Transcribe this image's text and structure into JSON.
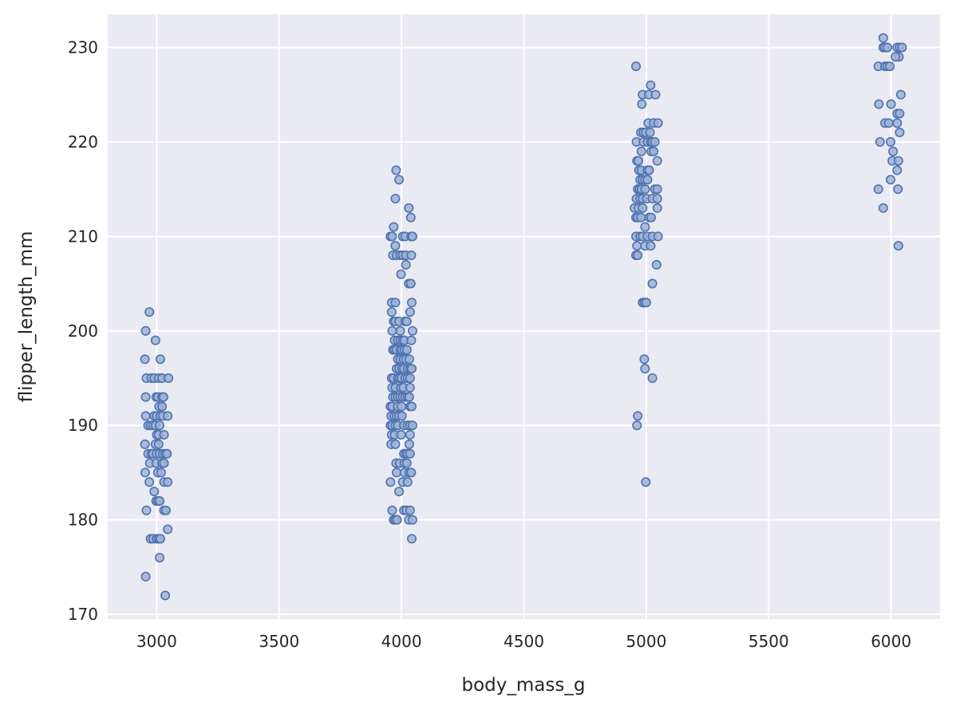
{
  "chart_data": {
    "type": "scatter",
    "title": "",
    "xlabel": "body_mass_g",
    "ylabel": "flipper_length_mm",
    "xlim": [
      2800,
      6200
    ],
    "ylim": [
      169.5,
      233.5
    ],
    "xticks": [
      3000,
      3500,
      4000,
      4500,
      5000,
      5500,
      6000
    ],
    "yticks": [
      170,
      180,
      190,
      200,
      210,
      220,
      230
    ],
    "grid": true,
    "background": "#eaeaf2",
    "marker_color": "#4c72b0",
    "marker_fill": "#9fb3d6",
    "points": [
      {
        "x": 2970,
        "y": 202
      },
      {
        "x": 2955,
        "y": 200
      },
      {
        "x": 2995,
        "y": 199
      },
      {
        "x": 2952,
        "y": 197
      },
      {
        "x": 3015,
        "y": 197
      },
      {
        "x": 2958,
        "y": 195
      },
      {
        "x": 2978,
        "y": 195
      },
      {
        "x": 2990,
        "y": 195
      },
      {
        "x": 3008,
        "y": 195
      },
      {
        "x": 3022,
        "y": 195
      },
      {
        "x": 3048,
        "y": 195
      },
      {
        "x": 2955,
        "y": 193
      },
      {
        "x": 2998,
        "y": 193
      },
      {
        "x": 3005,
        "y": 193
      },
      {
        "x": 3022,
        "y": 193
      },
      {
        "x": 3028,
        "y": 193
      },
      {
        "x": 3010,
        "y": 192
      },
      {
        "x": 3022,
        "y": 192
      },
      {
        "x": 2955,
        "y": 191
      },
      {
        "x": 2990,
        "y": 191
      },
      {
        "x": 3000,
        "y": 191
      },
      {
        "x": 3015,
        "y": 191
      },
      {
        "x": 3025,
        "y": 191
      },
      {
        "x": 3045,
        "y": 191
      },
      {
        "x": 2965,
        "y": 190
      },
      {
        "x": 2975,
        "y": 190
      },
      {
        "x": 2985,
        "y": 190
      },
      {
        "x": 2995,
        "y": 190
      },
      {
        "x": 3012,
        "y": 190
      },
      {
        "x": 3000,
        "y": 189
      },
      {
        "x": 3008,
        "y": 189
      },
      {
        "x": 3030,
        "y": 189
      },
      {
        "x": 2952,
        "y": 188
      },
      {
        "x": 2995,
        "y": 188
      },
      {
        "x": 3008,
        "y": 188
      },
      {
        "x": 2965,
        "y": 187
      },
      {
        "x": 2978,
        "y": 187
      },
      {
        "x": 2985,
        "y": 187
      },
      {
        "x": 3000,
        "y": 187
      },
      {
        "x": 3012,
        "y": 187
      },
      {
        "x": 3025,
        "y": 187
      },
      {
        "x": 3035,
        "y": 187
      },
      {
        "x": 3042,
        "y": 187
      },
      {
        "x": 2972,
        "y": 186
      },
      {
        "x": 2998,
        "y": 186
      },
      {
        "x": 3022,
        "y": 186
      },
      {
        "x": 3030,
        "y": 186
      },
      {
        "x": 2953,
        "y": 185
      },
      {
        "x": 3005,
        "y": 185
      },
      {
        "x": 3018,
        "y": 185
      },
      {
        "x": 2970,
        "y": 184
      },
      {
        "x": 3030,
        "y": 184
      },
      {
        "x": 3045,
        "y": 184
      },
      {
        "x": 2990,
        "y": 183
      },
      {
        "x": 2998,
        "y": 182
      },
      {
        "x": 3005,
        "y": 182
      },
      {
        "x": 3012,
        "y": 182
      },
      {
        "x": 2958,
        "y": 181
      },
      {
        "x": 3030,
        "y": 181
      },
      {
        "x": 3038,
        "y": 181
      },
      {
        "x": 3045,
        "y": 179
      },
      {
        "x": 2975,
        "y": 178
      },
      {
        "x": 2985,
        "y": 178
      },
      {
        "x": 3000,
        "y": 178
      },
      {
        "x": 3008,
        "y": 178
      },
      {
        "x": 3015,
        "y": 178
      },
      {
        "x": 3012,
        "y": 176
      },
      {
        "x": 2955,
        "y": 174
      },
      {
        "x": 3035,
        "y": 172
      },
      {
        "x": 3978,
        "y": 217
      },
      {
        "x": 3990,
        "y": 216
      },
      {
        "x": 3975,
        "y": 214
      },
      {
        "x": 4030,
        "y": 213
      },
      {
        "x": 4038,
        "y": 212
      },
      {
        "x": 3968,
        "y": 211
      },
      {
        "x": 3955,
        "y": 210
      },
      {
        "x": 3962,
        "y": 210
      },
      {
        "x": 4005,
        "y": 210
      },
      {
        "x": 4015,
        "y": 210
      },
      {
        "x": 4040,
        "y": 210
      },
      {
        "x": 4045,
        "y": 210
      },
      {
        "x": 3975,
        "y": 209
      },
      {
        "x": 3965,
        "y": 208
      },
      {
        "x": 3980,
        "y": 208
      },
      {
        "x": 3995,
        "y": 208
      },
      {
        "x": 4005,
        "y": 208
      },
      {
        "x": 4018,
        "y": 208
      },
      {
        "x": 4040,
        "y": 208
      },
      {
        "x": 4018,
        "y": 207
      },
      {
        "x": 3998,
        "y": 206
      },
      {
        "x": 4030,
        "y": 205
      },
      {
        "x": 4038,
        "y": 205
      },
      {
        "x": 3960,
        "y": 203
      },
      {
        "x": 3975,
        "y": 203
      },
      {
        "x": 4042,
        "y": 203
      },
      {
        "x": 3960,
        "y": 202
      },
      {
        "x": 4035,
        "y": 202
      },
      {
        "x": 3968,
        "y": 201
      },
      {
        "x": 3975,
        "y": 201
      },
      {
        "x": 3990,
        "y": 201
      },
      {
        "x": 4015,
        "y": 201
      },
      {
        "x": 4022,
        "y": 201
      },
      {
        "x": 3962,
        "y": 200
      },
      {
        "x": 3995,
        "y": 200
      },
      {
        "x": 4045,
        "y": 200
      },
      {
        "x": 3972,
        "y": 199
      },
      {
        "x": 3985,
        "y": 199
      },
      {
        "x": 3995,
        "y": 199
      },
      {
        "x": 4005,
        "y": 199
      },
      {
        "x": 4012,
        "y": 199
      },
      {
        "x": 4040,
        "y": 199
      },
      {
        "x": 3965,
        "y": 198
      },
      {
        "x": 3972,
        "y": 198
      },
      {
        "x": 3980,
        "y": 198
      },
      {
        "x": 3995,
        "y": 198
      },
      {
        "x": 4002,
        "y": 198
      },
      {
        "x": 4012,
        "y": 198
      },
      {
        "x": 4022,
        "y": 198
      },
      {
        "x": 3985,
        "y": 197
      },
      {
        "x": 3995,
        "y": 197
      },
      {
        "x": 4008,
        "y": 197
      },
      {
        "x": 4018,
        "y": 197
      },
      {
        "x": 4032,
        "y": 197
      },
      {
        "x": 3980,
        "y": 196
      },
      {
        "x": 3990,
        "y": 196
      },
      {
        "x": 4002,
        "y": 196
      },
      {
        "x": 4010,
        "y": 196
      },
      {
        "x": 4025,
        "y": 196
      },
      {
        "x": 4035,
        "y": 196
      },
      {
        "x": 4042,
        "y": 196
      },
      {
        "x": 3960,
        "y": 195
      },
      {
        "x": 3968,
        "y": 195
      },
      {
        "x": 3985,
        "y": 195
      },
      {
        "x": 3992,
        "y": 195
      },
      {
        "x": 4000,
        "y": 195
      },
      {
        "x": 4015,
        "y": 195
      },
      {
        "x": 4025,
        "y": 195
      },
      {
        "x": 4035,
        "y": 195
      },
      {
        "x": 3962,
        "y": 194
      },
      {
        "x": 3975,
        "y": 194
      },
      {
        "x": 3998,
        "y": 194
      },
      {
        "x": 4008,
        "y": 194
      },
      {
        "x": 4035,
        "y": 194
      },
      {
        "x": 3965,
        "y": 193
      },
      {
        "x": 3975,
        "y": 193
      },
      {
        "x": 3985,
        "y": 193
      },
      {
        "x": 3995,
        "y": 193
      },
      {
        "x": 4005,
        "y": 193
      },
      {
        "x": 4015,
        "y": 193
      },
      {
        "x": 4025,
        "y": 193
      },
      {
        "x": 4032,
        "y": 193
      },
      {
        "x": 3955,
        "y": 192
      },
      {
        "x": 3962,
        "y": 192
      },
      {
        "x": 3985,
        "y": 192
      },
      {
        "x": 4000,
        "y": 192
      },
      {
        "x": 4035,
        "y": 192
      },
      {
        "x": 4042,
        "y": 192
      },
      {
        "x": 3958,
        "y": 191
      },
      {
        "x": 3970,
        "y": 191
      },
      {
        "x": 3980,
        "y": 191
      },
      {
        "x": 3990,
        "y": 191
      },
      {
        "x": 4002,
        "y": 191
      },
      {
        "x": 3955,
        "y": 190
      },
      {
        "x": 3962,
        "y": 190
      },
      {
        "x": 3975,
        "y": 190
      },
      {
        "x": 3985,
        "y": 190
      },
      {
        "x": 4010,
        "y": 190
      },
      {
        "x": 4025,
        "y": 190
      },
      {
        "x": 4035,
        "y": 190
      },
      {
        "x": 4045,
        "y": 190
      },
      {
        "x": 3960,
        "y": 189
      },
      {
        "x": 3972,
        "y": 189
      },
      {
        "x": 3998,
        "y": 189
      },
      {
        "x": 4035,
        "y": 189
      },
      {
        "x": 3958,
        "y": 188
      },
      {
        "x": 3975,
        "y": 188
      },
      {
        "x": 4032,
        "y": 188
      },
      {
        "x": 4010,
        "y": 187
      },
      {
        "x": 4018,
        "y": 187
      },
      {
        "x": 4025,
        "y": 187
      },
      {
        "x": 4035,
        "y": 187
      },
      {
        "x": 3978,
        "y": 186
      },
      {
        "x": 3992,
        "y": 186
      },
      {
        "x": 4012,
        "y": 186
      },
      {
        "x": 4022,
        "y": 186
      },
      {
        "x": 3980,
        "y": 185
      },
      {
        "x": 4012,
        "y": 185
      },
      {
        "x": 4032,
        "y": 185
      },
      {
        "x": 4040,
        "y": 185
      },
      {
        "x": 3955,
        "y": 184
      },
      {
        "x": 4005,
        "y": 184
      },
      {
        "x": 4025,
        "y": 184
      },
      {
        "x": 3990,
        "y": 183
      },
      {
        "x": 3962,
        "y": 181
      },
      {
        "x": 4010,
        "y": 181
      },
      {
        "x": 4020,
        "y": 181
      },
      {
        "x": 4035,
        "y": 181
      },
      {
        "x": 3968,
        "y": 180
      },
      {
        "x": 3975,
        "y": 180
      },
      {
        "x": 3982,
        "y": 180
      },
      {
        "x": 4030,
        "y": 180
      },
      {
        "x": 4045,
        "y": 180
      },
      {
        "x": 4042,
        "y": 178
      },
      {
        "x": 4958,
        "y": 228
      },
      {
        "x": 5018,
        "y": 226
      },
      {
        "x": 4985,
        "y": 225
      },
      {
        "x": 5010,
        "y": 225
      },
      {
        "x": 5038,
        "y": 225
      },
      {
        "x": 4982,
        "y": 224
      },
      {
        "x": 5008,
        "y": 222
      },
      {
        "x": 5030,
        "y": 222
      },
      {
        "x": 5048,
        "y": 222
      },
      {
        "x": 4978,
        "y": 221
      },
      {
        "x": 4988,
        "y": 221
      },
      {
        "x": 4998,
        "y": 221
      },
      {
        "x": 5015,
        "y": 221
      },
      {
        "x": 4960,
        "y": 220
      },
      {
        "x": 4988,
        "y": 220
      },
      {
        "x": 5005,
        "y": 220
      },
      {
        "x": 5018,
        "y": 220
      },
      {
        "x": 5025,
        "y": 220
      },
      {
        "x": 5035,
        "y": 220
      },
      {
        "x": 4980,
        "y": 219
      },
      {
        "x": 5020,
        "y": 219
      },
      {
        "x": 5030,
        "y": 219
      },
      {
        "x": 4962,
        "y": 218
      },
      {
        "x": 4968,
        "y": 218
      },
      {
        "x": 5045,
        "y": 218
      },
      {
        "x": 4970,
        "y": 217
      },
      {
        "x": 4980,
        "y": 217
      },
      {
        "x": 5005,
        "y": 217
      },
      {
        "x": 5012,
        "y": 217
      },
      {
        "x": 4975,
        "y": 216
      },
      {
        "x": 4985,
        "y": 216
      },
      {
        "x": 4995,
        "y": 216
      },
      {
        "x": 5005,
        "y": 216
      },
      {
        "x": 4965,
        "y": 215
      },
      {
        "x": 4972,
        "y": 215
      },
      {
        "x": 4980,
        "y": 215
      },
      {
        "x": 4995,
        "y": 215
      },
      {
        "x": 5035,
        "y": 215
      },
      {
        "x": 5045,
        "y": 215
      },
      {
        "x": 4960,
        "y": 214
      },
      {
        "x": 4975,
        "y": 214
      },
      {
        "x": 4985,
        "y": 214
      },
      {
        "x": 5002,
        "y": 214
      },
      {
        "x": 5025,
        "y": 214
      },
      {
        "x": 5045,
        "y": 214
      },
      {
        "x": 4952,
        "y": 213
      },
      {
        "x": 4968,
        "y": 213
      },
      {
        "x": 4985,
        "y": 213
      },
      {
        "x": 5045,
        "y": 213
      },
      {
        "x": 4958,
        "y": 212
      },
      {
        "x": 4965,
        "y": 212
      },
      {
        "x": 4978,
        "y": 212
      },
      {
        "x": 5012,
        "y": 212
      },
      {
        "x": 5020,
        "y": 212
      },
      {
        "x": 4995,
        "y": 211
      },
      {
        "x": 4958,
        "y": 210
      },
      {
        "x": 4975,
        "y": 210
      },
      {
        "x": 4985,
        "y": 210
      },
      {
        "x": 5005,
        "y": 210
      },
      {
        "x": 5025,
        "y": 210
      },
      {
        "x": 5048,
        "y": 210
      },
      {
        "x": 4962,
        "y": 209
      },
      {
        "x": 4995,
        "y": 209
      },
      {
        "x": 5018,
        "y": 209
      },
      {
        "x": 4958,
        "y": 208
      },
      {
        "x": 4965,
        "y": 208
      },
      {
        "x": 5042,
        "y": 207
      },
      {
        "x": 5025,
        "y": 205
      },
      {
        "x": 4985,
        "y": 203
      },
      {
        "x": 4992,
        "y": 203
      },
      {
        "x": 5000,
        "y": 203
      },
      {
        "x": 4992,
        "y": 197
      },
      {
        "x": 4995,
        "y": 196
      },
      {
        "x": 5025,
        "y": 195
      },
      {
        "x": 4965,
        "y": 191
      },
      {
        "x": 4962,
        "y": 190
      },
      {
        "x": 4998,
        "y": 184
      },
      {
        "x": 5968,
        "y": 231
      },
      {
        "x": 5968,
        "y": 230
      },
      {
        "x": 5975,
        "y": 230
      },
      {
        "x": 5985,
        "y": 230
      },
      {
        "x": 6025,
        "y": 230
      },
      {
        "x": 6035,
        "y": 230
      },
      {
        "x": 6045,
        "y": 230
      },
      {
        "x": 6032,
        "y": 229
      },
      {
        "x": 6018,
        "y": 229
      },
      {
        "x": 5948,
        "y": 228
      },
      {
        "x": 5975,
        "y": 228
      },
      {
        "x": 5985,
        "y": 228
      },
      {
        "x": 5995,
        "y": 228
      },
      {
        "x": 6040,
        "y": 225
      },
      {
        "x": 5950,
        "y": 224
      },
      {
        "x": 6000,
        "y": 224
      },
      {
        "x": 6025,
        "y": 223
      },
      {
        "x": 6035,
        "y": 223
      },
      {
        "x": 5975,
        "y": 222
      },
      {
        "x": 5990,
        "y": 222
      },
      {
        "x": 6025,
        "y": 222
      },
      {
        "x": 6035,
        "y": 221
      },
      {
        "x": 5955,
        "y": 220
      },
      {
        "x": 5998,
        "y": 220
      },
      {
        "x": 6008,
        "y": 219
      },
      {
        "x": 6005,
        "y": 218
      },
      {
        "x": 6030,
        "y": 218
      },
      {
        "x": 6025,
        "y": 217
      },
      {
        "x": 5998,
        "y": 216
      },
      {
        "x": 5948,
        "y": 215
      },
      {
        "x": 6028,
        "y": 215
      },
      {
        "x": 5968,
        "y": 213
      },
      {
        "x": 6030,
        "y": 209
      }
    ]
  }
}
